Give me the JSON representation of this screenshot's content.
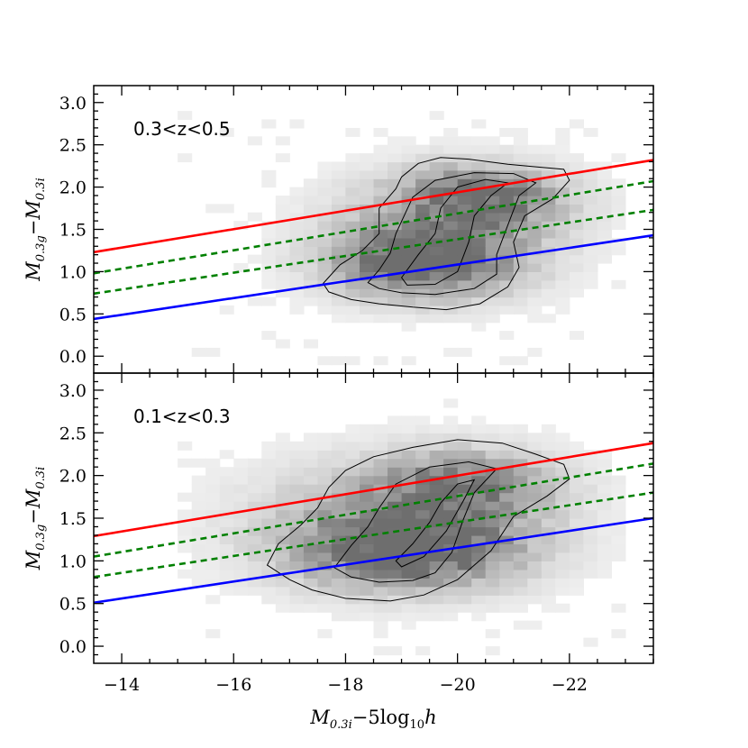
{
  "chart_data": {
    "type": "heatmap",
    "xlabel": {
      "m": "M",
      "sub": "0.3i",
      "rest": "−5log",
      "sub2": "10",
      "h": "h"
    },
    "ylabel": {
      "m1": "M",
      "sub1": "0.3g",
      "minus": "−",
      "m2": "M",
      "sub2": "0.3i"
    },
    "xlim": [
      -13.5,
      -23.5
    ],
    "xticks": [
      -14,
      -16,
      -18,
      -20,
      -22
    ],
    "xtick_labels": [
      "−14",
      "−16",
      "−18",
      "−20",
      "−22"
    ],
    "ylim": [
      -0.2,
      3.2
    ],
    "yticks": [
      0.0,
      0.5,
      1.0,
      1.5,
      2.0,
      2.5,
      3.0
    ],
    "ytick_labels": [
      "0.0",
      "0.5",
      "1.0",
      "1.5",
      "2.0",
      "2.5",
      "3.0"
    ],
    "line_colors": {
      "red": "#ff0000",
      "blue": "#0000ff",
      "green": "#008000"
    },
    "panels": [
      {
        "label": "0.3<z<0.5",
        "lines": [
          {
            "color": "red",
            "style": "solid",
            "x": [
              -13.5,
              -23.5
            ],
            "y": [
              1.23,
              2.32
            ]
          },
          {
            "color": "green",
            "style": "dashed",
            "x": [
              -13.5,
              -23.5
            ],
            "y": [
              0.98,
              2.07
            ]
          },
          {
            "color": "green",
            "style": "dashed",
            "x": [
              -13.5,
              -23.5
            ],
            "y": [
              0.74,
              1.73
            ]
          },
          {
            "color": "blue",
            "style": "solid",
            "x": [
              -13.5,
              -23.5
            ],
            "y": [
              0.44,
              1.43
            ]
          }
        ],
        "density_blobs": [
          {
            "x": -19.2,
            "y": 1.05,
            "sx": 1.1,
            "sy": 0.28,
            "amp": 1.0
          },
          {
            "x": -20.3,
            "y": 1.85,
            "sx": 1.0,
            "sy": 0.25,
            "amp": 0.85
          },
          {
            "x": -19.7,
            "y": 1.45,
            "sx": 1.4,
            "sy": 0.45,
            "amp": 0.55
          }
        ],
        "contours": [
          {
            "x": [
              -17.6,
              -17.9,
              -18.3,
              -18.6,
              -18.6,
              -18.9,
              -19.0,
              -19.3,
              -19.7,
              -20.2,
              -20.9,
              -21.4,
              -21.9,
              -22.0,
              -21.7,
              -21.2,
              -21.0,
              -21.1,
              -20.9,
              -20.4,
              -19.8,
              -19.2,
              -18.6,
              -18.1,
              -17.7,
              -17.6
            ],
            "y": [
              0.86,
              1.08,
              1.25,
              1.45,
              1.75,
              1.98,
              2.12,
              2.28,
              2.35,
              2.33,
              2.27,
              2.24,
              2.21,
              2.08,
              1.86,
              1.66,
              1.35,
              1.05,
              0.82,
              0.62,
              0.55,
              0.58,
              0.62,
              0.67,
              0.76,
              0.86
            ]
          },
          {
            "x": [
              -18.4,
              -18.6,
              -18.8,
              -18.9,
              -19.2,
              -19.6,
              -20.3,
              -21.0,
              -21.4,
              -21.1,
              -20.9,
              -20.7,
              -20.7,
              -20.3,
              -19.6,
              -19.0,
              -18.6,
              -18.4
            ],
            "y": [
              0.87,
              1.02,
              1.22,
              1.45,
              1.88,
              2.08,
              2.17,
              2.16,
              2.05,
              1.9,
              1.55,
              1.2,
              0.97,
              0.8,
              0.73,
              0.75,
              0.8,
              0.87
            ]
          },
          {
            "x": [
              -19.0,
              -19.3,
              -19.6,
              -19.7,
              -20.0,
              -20.5,
              -20.9,
              -20.6,
              -20.3,
              -20.2,
              -20.0,
              -19.6,
              -19.1,
              -19.0
            ],
            "y": [
              0.93,
              1.2,
              1.45,
              1.75,
              2.0,
              2.09,
              2.05,
              1.9,
              1.66,
              1.35,
              1.0,
              0.85,
              0.84,
              0.93
            ]
          }
        ]
      },
      {
        "label": "0.1<z<0.3",
        "lines": [
          {
            "color": "red",
            "style": "solid",
            "x": [
              -13.5,
              -23.5
            ],
            "y": [
              1.29,
              2.38
            ]
          },
          {
            "color": "green",
            "style": "dashed",
            "x": [
              -13.5,
              -23.5
            ],
            "y": [
              1.05,
              2.14
            ]
          },
          {
            "color": "green",
            "style": "dashed",
            "x": [
              -13.5,
              -23.5
            ],
            "y": [
              0.81,
              1.8
            ]
          },
          {
            "color": "blue",
            "style": "solid",
            "x": [
              -13.5,
              -23.5
            ],
            "y": [
              0.51,
              1.5
            ]
          }
        ],
        "density_blobs": [
          {
            "x": -19.0,
            "y": 1.08,
            "sx": 1.3,
            "sy": 0.3,
            "amp": 1.0
          },
          {
            "x": -20.0,
            "y": 1.85,
            "sx": 1.1,
            "sy": 0.28,
            "amp": 0.75
          },
          {
            "x": -18.8,
            "y": 1.4,
            "sx": 1.8,
            "sy": 0.5,
            "amp": 0.55
          }
        ],
        "contours": [
          {
            "x": [
              -16.6,
              -16.8,
              -17.2,
              -17.5,
              -17.7,
              -18.0,
              -18.5,
              -19.2,
              -20.0,
              -20.8,
              -21.4,
              -21.9,
              -22.0,
              -21.6,
              -21.0,
              -20.6,
              -20.0,
              -19.4,
              -18.8,
              -18.0,
              -17.4,
              -17.0,
              -16.6
            ],
            "y": [
              0.95,
              1.2,
              1.42,
              1.62,
              1.86,
              2.06,
              2.22,
              2.33,
              2.42,
              2.38,
              2.25,
              2.13,
              1.96,
              1.76,
              1.52,
              1.12,
              0.78,
              0.6,
              0.53,
              0.56,
              0.66,
              0.78,
              0.95
            ]
          },
          {
            "x": [
              -17.8,
              -18.1,
              -18.4,
              -18.6,
              -18.9,
              -19.5,
              -20.2,
              -20.7,
              -20.3,
              -20.1,
              -19.9,
              -19.6,
              -19.2,
              -18.6,
              -18.1,
              -17.8
            ],
            "y": [
              0.92,
              1.18,
              1.4,
              1.62,
              1.9,
              2.1,
              2.16,
              2.08,
              1.8,
              1.48,
              1.1,
              0.86,
              0.77,
              0.75,
              0.81,
              0.92
            ]
          },
          {
            "x": [
              -18.9,
              -19.2,
              -19.5,
              -19.7,
              -20.0,
              -20.3,
              -20.1,
              -19.8,
              -19.4,
              -19.0,
              -18.9
            ],
            "y": [
              1.0,
              1.2,
              1.45,
              1.68,
              1.9,
              1.95,
              1.7,
              1.35,
              1.05,
              0.93,
              1.0
            ]
          }
        ]
      }
    ]
  }
}
